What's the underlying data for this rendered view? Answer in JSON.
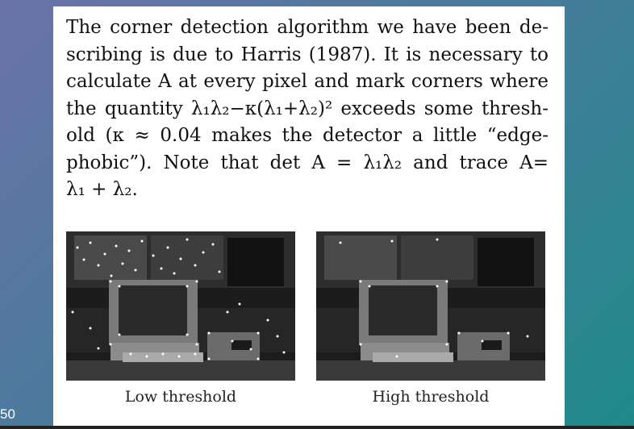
{
  "slide_number": "50",
  "paragraph_lines": [
    "The corner detection algorithm we have been de-",
    "scribing is due to Harris (1987). It is necessary to",
    "calculate A at every pixel and mark corners where",
    "the quantity λ₁λ₂−κ(λ₁+λ₂)² exceeds some thresh-",
    "old (κ ≈ 0.04 makes the detector a little “edge-",
    "phobic”). Note that det A = λ₁λ₂ and trace A=",
    "λ₁ + λ₂."
  ],
  "figures": [
    {
      "caption": "Low threshold"
    },
    {
      "caption": "High threshold"
    }
  ]
}
